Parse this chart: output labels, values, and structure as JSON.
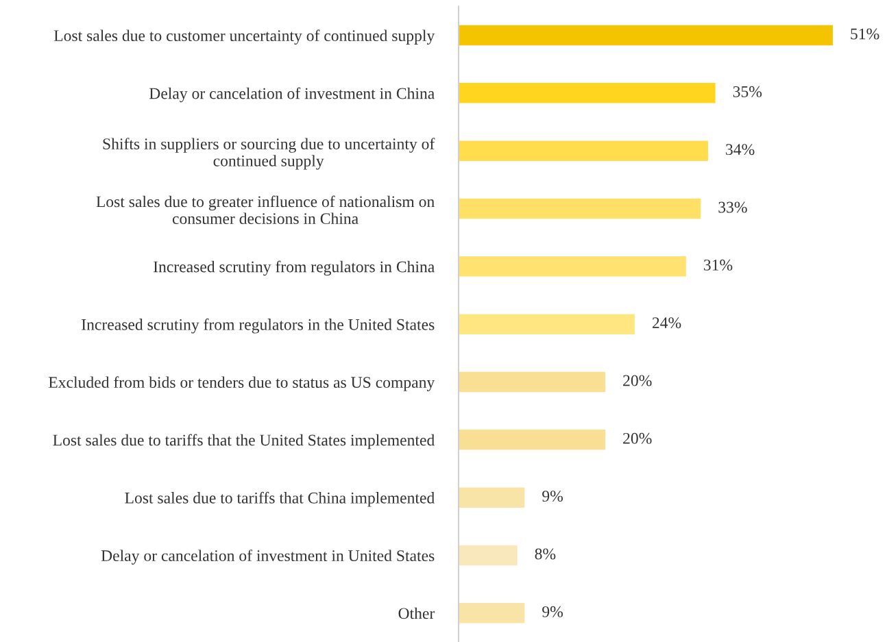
{
  "chart_data": {
    "type": "bar",
    "orientation": "horizontal",
    "categories": [
      "Lost sales due to customer uncertainty of continued supply",
      "Delay or cancelation of investment in China",
      "Shifts in suppliers or sourcing due to uncertainty of\ncontinued supply",
      "Lost sales due to greater influence of nationalism on\nconsumer decisions in China",
      "Increased scrutiny from regulators in China",
      "Increased scrutiny from regulators in the United States",
      "Excluded from bids or tenders due to status as US company",
      "Lost sales due to tariffs that the United States implemented",
      "Lost sales due to tariffs that China implemented",
      "Delay or cancelation of investment in United States",
      "Other"
    ],
    "values": [
      51,
      35,
      34,
      33,
      31,
      24,
      20,
      20,
      9,
      8,
      9
    ],
    "value_labels": [
      "51%",
      "35%",
      "34%",
      "33%",
      "31%",
      "24%",
      "20%",
      "20%",
      "9%",
      "8%",
      "9%"
    ],
    "colors": [
      "#f5c400",
      "#ffd520",
      "#ffdd4d",
      "#ffe066",
      "#ffe270",
      "#ffe680",
      "#f9df94",
      "#f9df94",
      "#f9e4a8",
      "#f9e8bb",
      "#f9e4a8"
    ],
    "grid": false,
    "legend": false
  }
}
